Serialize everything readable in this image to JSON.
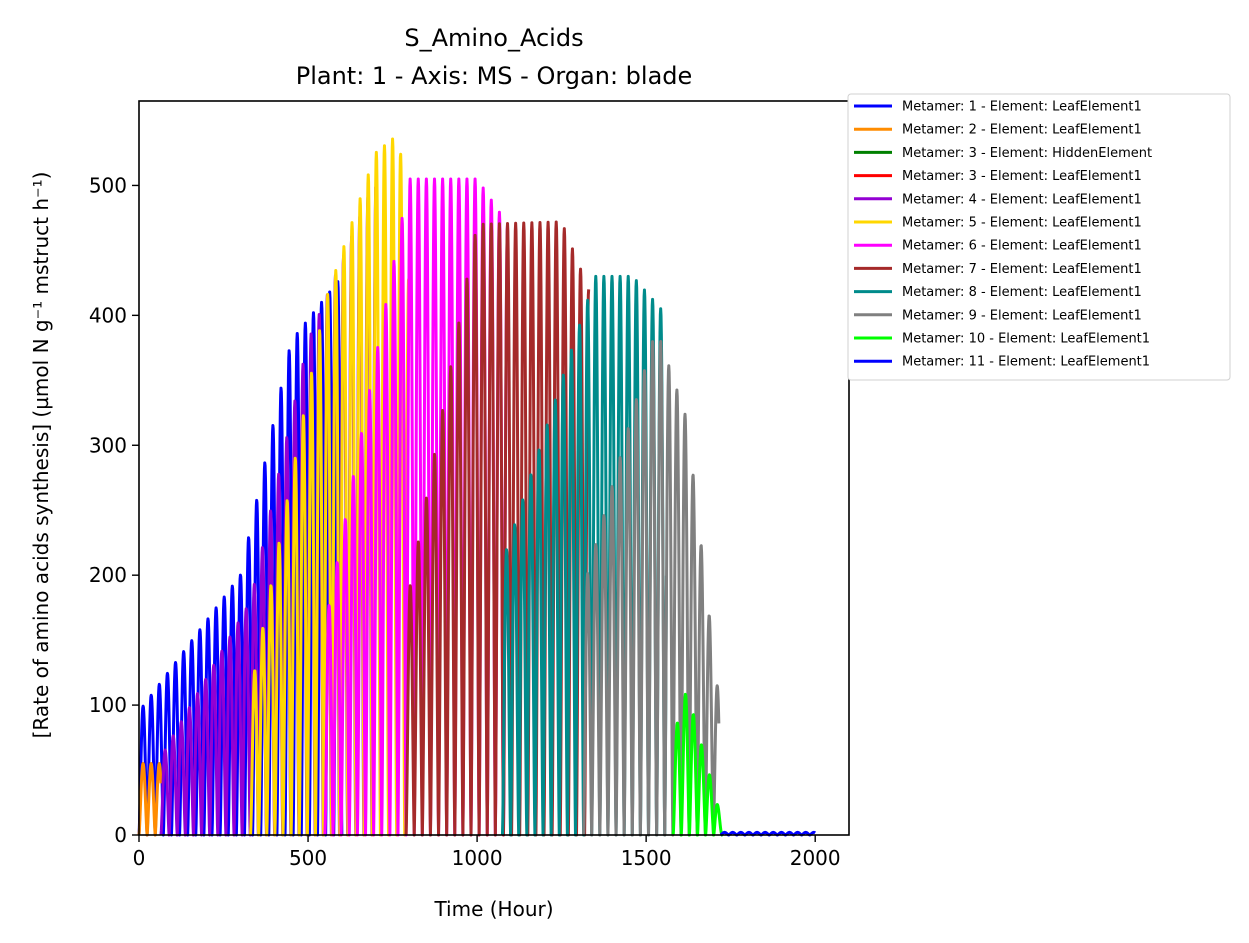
{
  "chart_data": {
    "type": "line",
    "title": "S_Amino_Acids",
    "subtitle": "Plant: 1 - Axis: MS - Organ: blade",
    "xlabel": "Time (Hour)",
    "ylabel": "[Rate of amino acids synthesis] (µmol N g⁻¹ mstruct h⁻¹)",
    "xlim": [
      0,
      2100
    ],
    "ylim": [
      0,
      565
    ],
    "xticks": [
      0,
      500,
      1000,
      1500,
      2000
    ],
    "yticks": [
      0,
      100,
      200,
      300,
      400,
      500
    ],
    "grid": false,
    "legend_position": "outside-right",
    "series": [
      {
        "name": "Metamer: 1 - Element: LeafElement1",
        "color": "#0000ff",
        "start": 0,
        "end": 600,
        "peaks": [
          [
            0,
            95
          ],
          [
            300,
            200
          ],
          [
            450,
            380
          ],
          [
            600,
            430
          ]
        ]
      },
      {
        "name": "Metamer: 2 - Element: LeafElement1",
        "color": "#ff8c00",
        "start": 0,
        "end": 65,
        "peaks": [
          [
            0,
            55
          ],
          [
            65,
            55
          ]
        ]
      },
      {
        "name": "Metamer: 3 - Element: HiddenElement",
        "color": "#008000",
        "start": 0,
        "end": 0,
        "peaks": [
          [
            0,
            0
          ]
        ]
      },
      {
        "name": "Metamer: 3 - Element: LeafElement1",
        "color": "#ff0000",
        "start": 0,
        "end": 0,
        "peaks": [
          [
            0,
            0
          ]
        ]
      },
      {
        "name": "Metamer: 4 - Element: LeafElement1",
        "color": "#9400d3",
        "start": 65,
        "end": 700,
        "peaks": [
          [
            65,
            60
          ],
          [
            330,
            180
          ],
          [
            500,
            380
          ],
          [
            700,
            505
          ]
        ]
      },
      {
        "name": "Metamer: 5 - Element: LeafElement1",
        "color": "#ffd700",
        "start": 330,
        "end": 800,
        "peaks": [
          [
            330,
            110
          ],
          [
            550,
            410
          ],
          [
            700,
            525
          ],
          [
            770,
            540
          ],
          [
            800,
            420
          ]
        ]
      },
      {
        "name": "Metamer: 6 - Element: LeafElement1",
        "color": "#ff00ff",
        "start": 550,
        "end": 1090,
        "peaks": [
          [
            550,
            160
          ],
          [
            800,
            505
          ],
          [
            1000,
            505
          ],
          [
            1090,
            470
          ]
        ]
      },
      {
        "name": "Metamer: 7 - Element: LeafElement1",
        "color": "#a52a2a",
        "start": 790,
        "end": 1330,
        "peaks": [
          [
            790,
            175
          ],
          [
            1000,
            470
          ],
          [
            1250,
            472
          ],
          [
            1330,
            420
          ]
        ]
      },
      {
        "name": "Metamer: 8 - Element: LeafElement1",
        "color": "#008b8b",
        "start": 1075,
        "end": 1560,
        "peaks": [
          [
            1075,
            210
          ],
          [
            1350,
            430
          ],
          [
            1460,
            430
          ],
          [
            1560,
            400
          ]
        ]
      },
      {
        "name": "Metamer: 9 - Element: LeafElement1",
        "color": "#808080",
        "start": 1315,
        "end": 1715,
        "peaks": [
          [
            1315,
            190
          ],
          [
            1530,
            390
          ],
          [
            1620,
            320
          ],
          [
            1715,
            105
          ]
        ]
      },
      {
        "name": "Metamer: 10 - Element: LeafElement1",
        "color": "#00ff00",
        "start": 1580,
        "end": 1725,
        "peaks": [
          [
            1580,
            75
          ],
          [
            1620,
            112
          ],
          [
            1725,
            10
          ]
        ]
      },
      {
        "name": "Metamer: 11 - Element: LeafElement1",
        "color": "#0000ff",
        "start": 1720,
        "end": 2000,
        "peaks": [
          [
            1720,
            2
          ],
          [
            2000,
            2
          ]
        ]
      }
    ],
    "cycle_hours": 24
  }
}
